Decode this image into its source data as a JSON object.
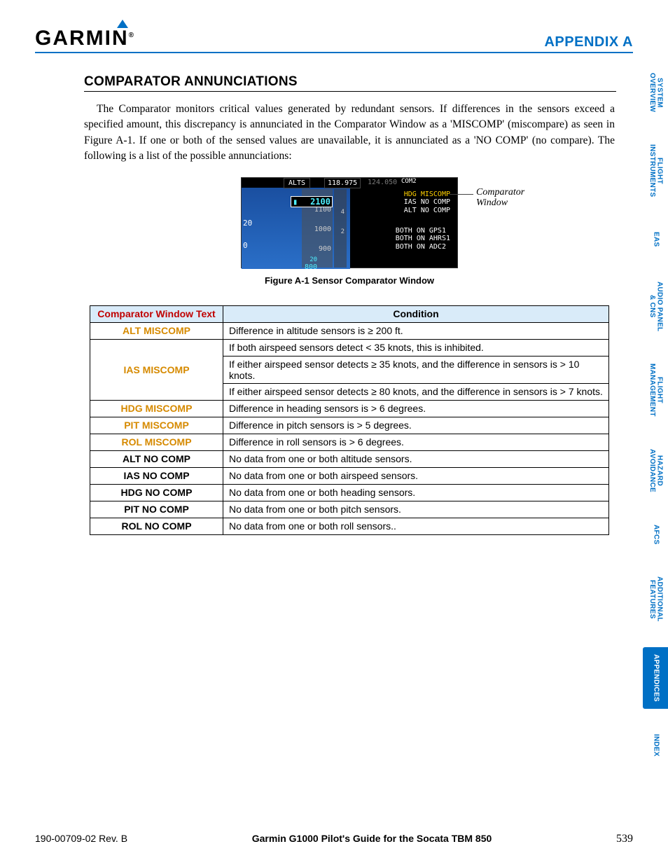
{
  "header": {
    "logo_text": "GARMIN",
    "logo_r": "®",
    "appendix": "APPENDIX A"
  },
  "section": {
    "title": "COMPARATOR ANNUNCIATIONS",
    "body": "The Comparator monitors critical values generated by redundant sensors.  If differences in the sensors exceed a specified amount, this discrepancy is annunciated in the Comparator Window as a 'MISCOMP' (miscompare) as seen in Figure A-1.  If one or both of the sensed values are unavailable, it is annunciated as a 'NO COMP' (no compare).  The following is a list of the possible annunciations:"
  },
  "figure": {
    "alts": "ALTS",
    "freq1": "118.975",
    "freq2": "124.050",
    "com2": "COM2",
    "alt_box": "2100",
    "alt_1100": "1100",
    "alt_1000": "1000",
    "alt_900": "900",
    "baro1": "20",
    "baro2": "800",
    "left20": "20",
    "left0": "0",
    "vspd4": "4",
    "vspd2": "2",
    "comp_line1": "HDG MISCOMP",
    "comp_line2": "IAS NO COMP",
    "comp_line3": "ALT NO COMP",
    "sensor_line1": "BOTH ON GPS1",
    "sensor_line2": "BOTH ON AHRS1",
    "sensor_line3": "BOTH ON ADC2",
    "callout1": "Comparator",
    "callout2": "Window",
    "caption": "Figure A-1  Sensor Comparator Window"
  },
  "table": {
    "headers": [
      "Comparator Window Text",
      "Condition"
    ],
    "rows": [
      {
        "label": "ALT MISCOMP",
        "amber": true,
        "conditions": [
          "Difference in altitude sensors is ≥ 200 ft."
        ]
      },
      {
        "label": "IAS MISCOMP",
        "amber": true,
        "conditions": [
          "If both airspeed sensors detect < 35 knots, this is inhibited.",
          "If either airspeed sensor detects ≥ 35 knots, and the difference in sensors is > 10 knots.",
          "If either airspeed sensor detects ≥ 80 knots, and the difference in sensors is > 7 knots."
        ]
      },
      {
        "label": "HDG MISCOMP",
        "amber": true,
        "conditions": [
          "Difference in heading sensors is > 6 degrees."
        ]
      },
      {
        "label": "PIT MISCOMP",
        "amber": true,
        "conditions": [
          "Difference in pitch sensors is > 5 degrees."
        ]
      },
      {
        "label": "ROL MISCOMP",
        "amber": true,
        "conditions": [
          "Difference in roll sensors is > 6 degrees."
        ]
      },
      {
        "label": "ALT NO COMP",
        "amber": false,
        "conditions": [
          "No data from one or both altitude sensors."
        ]
      },
      {
        "label": "IAS NO COMP",
        "amber": false,
        "conditions": [
          "No data from one or both airspeed sensors."
        ]
      },
      {
        "label": "HDG NO COMP",
        "amber": false,
        "conditions": [
          "No data from one or both heading sensors."
        ]
      },
      {
        "label": "PIT NO COMP",
        "amber": false,
        "conditions": [
          "No data from one or both pitch sensors."
        ]
      },
      {
        "label": "ROL NO COMP",
        "amber": false,
        "conditions": [
          "No data from one or both roll sensors.."
        ]
      }
    ],
    "header_label_color": "#c00000",
    "amber_color": "#d68a00"
  },
  "sidebar": {
    "tabs": [
      {
        "label": "SYSTEM\nOVERVIEW",
        "active": false
      },
      {
        "label": "FLIGHT\nINSTRUMENTS",
        "active": false
      },
      {
        "label": "EAS",
        "active": false
      },
      {
        "label": "AUDIO PANEL\n& CNS",
        "active": false
      },
      {
        "label": "FLIGHT\nMANAGEMENT",
        "active": false
      },
      {
        "label": "HAZARD\nAVOIDANCE",
        "active": false
      },
      {
        "label": "AFCS",
        "active": false
      },
      {
        "label": "ADDITIONAL\nFEATURES",
        "active": false
      },
      {
        "label": "APPENDICES",
        "active": true
      },
      {
        "label": "INDEX",
        "active": false
      }
    ]
  },
  "footer": {
    "doc": "190-00709-02  Rev. B",
    "guide": "Garmin G1000 Pilot's Guide for the Socata TBM 850",
    "page": "539"
  }
}
